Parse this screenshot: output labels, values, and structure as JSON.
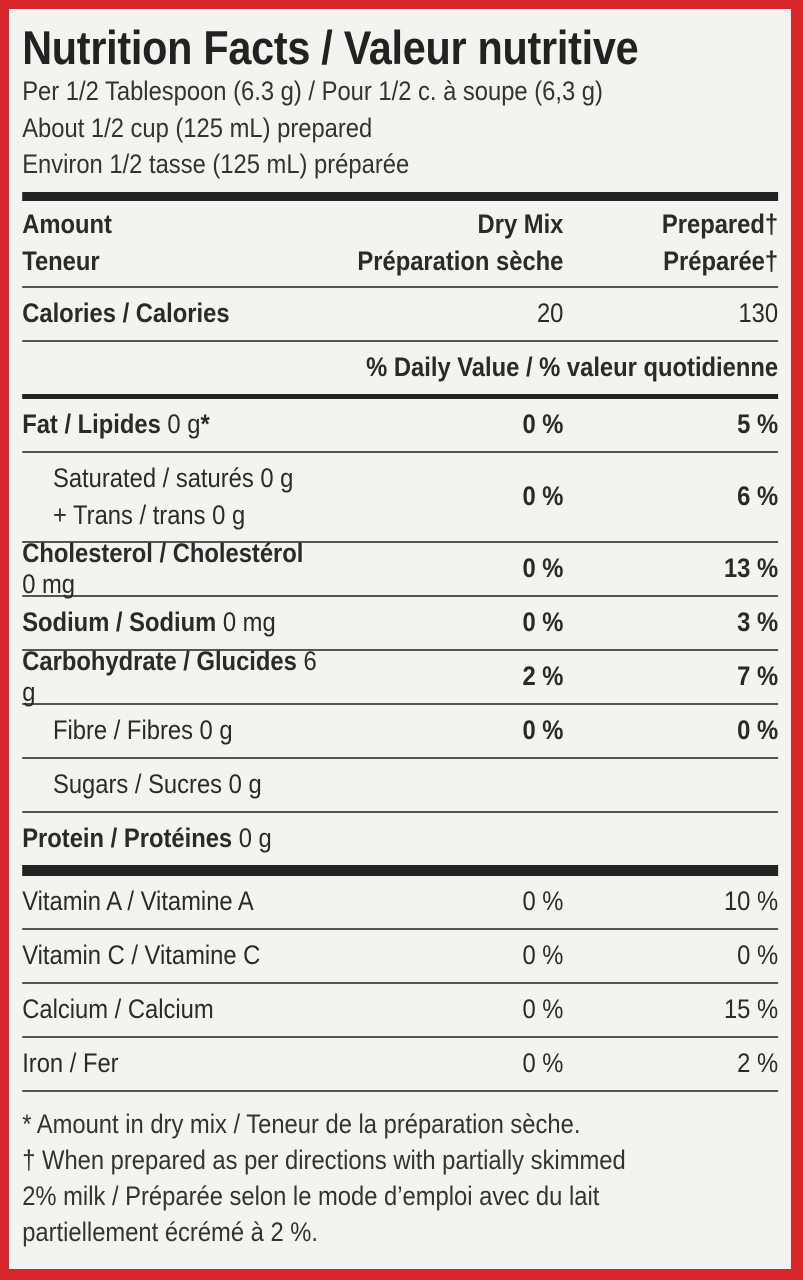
{
  "title": "Nutrition Facts / Valeur nutritive",
  "serving": [
    "Per 1/2 Tablespoon (6.3 g) / Pour 1/2 c. à soupe (6,3 g)",
    "About 1/2 cup (125 mL) prepared",
    "Environ 1/2 tasse (125 mL) préparée"
  ],
  "header": {
    "amount": "Amount",
    "teneur": "Teneur",
    "dry_en": "Dry Mix",
    "dry_fr": "Préparation sèche",
    "prep_en": "Prepared†",
    "prep_fr": "Préparée†"
  },
  "calories": {
    "label": "Calories / Calories",
    "dry": "20",
    "prepared": "130"
  },
  "daily_value_label": "% Daily Value / % valeur quotidienne",
  "nutrients": [
    {
      "bold": "Fat / Lipides",
      "regular": " 0 g",
      "marker": "*",
      "dry": "0 %",
      "prepared": "5 %",
      "indent": false
    },
    {
      "bold": "",
      "regular": "Saturated / saturés 0 g",
      "regular2": "+ Trans / trans 0 g",
      "dry": "0 %",
      "prepared": "6 %",
      "indent": true
    },
    {
      "bold": "Cholesterol / Cholestérol",
      "regular": " 0 mg",
      "dry": "0 %",
      "prepared": "13 %",
      "indent": false
    },
    {
      "bold": "Sodium / Sodium",
      "regular": " 0 mg",
      "dry": "0 %",
      "prepared": "3 %",
      "indent": false
    },
    {
      "bold": "Carbohydrate / Glucides",
      "regular": " 6 g",
      "dry": "2 %",
      "prepared": "7 %",
      "indent": false
    },
    {
      "bold": "",
      "regular": "Fibre / Fibres 0 g",
      "dry": "0 %",
      "prepared": "0 %",
      "indent": true
    },
    {
      "bold": "",
      "regular": "Sugars / Sucres 0 g",
      "dry": "",
      "prepared": "",
      "indent": true
    },
    {
      "bold": "Protein / Protéines",
      "regular": " 0 g",
      "dry": "",
      "prepared": "",
      "indent": false
    }
  ],
  "vitamins": [
    {
      "label": "Vitamin A / Vitamine A",
      "dry": "0 %",
      "prepared": "10 %"
    },
    {
      "label": "Vitamin C / Vitamine C",
      "dry": "0 %",
      "prepared": "0 %"
    },
    {
      "label": "Calcium / Calcium",
      "dry": "0 %",
      "prepared": "15 %"
    },
    {
      "label": "Iron / Fer",
      "dry": "0 %",
      "prepared": "2 %"
    }
  ],
  "footnotes": [
    "* Amount in dry mix / Teneur de la préparation sèche.",
    "† When prepared as per directions with partially skimmed",
    "2% milk / Préparée selon le mode d’emploi avec du lait",
    "partiellement écrémé à 2 %."
  ],
  "colors": {
    "border": "#d8262a",
    "panel": "#f3f3f1",
    "text": "#2a2a2a"
  }
}
